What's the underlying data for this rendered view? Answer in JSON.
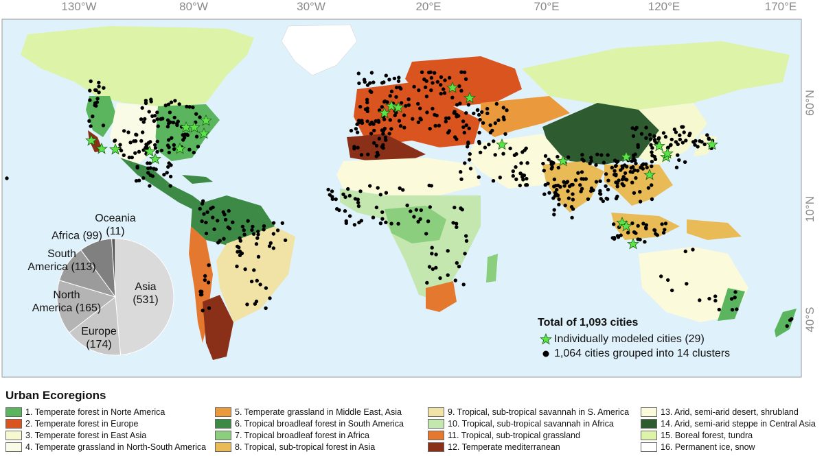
{
  "map": {
    "longitude_ticks": [
      "130°W",
      "80°W",
      "30°W",
      "20°E",
      "70°E",
      "120°E",
      "170°E"
    ],
    "latitude_ticks": [
      "60°N",
      "10°N",
      "40°S"
    ],
    "colors": {
      "ocean": "#dff1fb",
      "star": "#5de34a",
      "dot": "#000000"
    }
  },
  "pie": {
    "slices": [
      {
        "region": "Asia",
        "count_label": "(531)",
        "value": 531,
        "color": "#dadada"
      },
      {
        "region": "Europe",
        "count_label": "(174)",
        "value": 174,
        "color": "#c8c8c8"
      },
      {
        "region": "North America",
        "label_line1": "North",
        "label_line2": "America (165)",
        "value": 165,
        "color": "#b4b4b4"
      },
      {
        "region": "South America",
        "label_line1": "South",
        "label_line2": "America (113)",
        "value": 113,
        "color": "#9b9b9b"
      },
      {
        "region": "Africa",
        "label": "Africa (99)",
        "value": 99,
        "color": "#808080"
      },
      {
        "region": "Oceania",
        "label_line1": "Oceania",
        "label_line2": "(11)",
        "value": 11,
        "color": "#5a5a5a"
      }
    ],
    "labels": {
      "asia_name": "Asia",
      "asia_count": "(531)",
      "europe_name": "Europe",
      "europe_count": "(174)",
      "north_line1": "North",
      "north_line2": "America (165)",
      "south_line1": "South",
      "south_line2": "America (113)",
      "africa": "Africa (99)",
      "oceania_line1": "Oceania",
      "oceania_line2": "(11)"
    }
  },
  "map_legend": {
    "total": "Total of 1,093 cities",
    "star_label": "Individually modeled cities (29)",
    "dot_label": "1,064 cities grouped into 14 clusters"
  },
  "ecoregions": {
    "title": "Urban Ecoregions",
    "items": [
      {
        "label": "1. Temperate forest in Norte America",
        "color": "#5ab55e"
      },
      {
        "label": "2. Temperate forest in Europe",
        "color": "#d9541e"
      },
      {
        "label": "3. Temperate forest in East Asia",
        "color": "#f6f8cf"
      },
      {
        "label": "4. Temperate grassland in North-South America",
        "color": "#fafbe6"
      },
      {
        "label": "5. Temperate grassland in Middle East, Asia",
        "color": "#ea9a3c"
      },
      {
        "label": "6. Tropical broadleaf forest in South America",
        "color": "#3d8a47"
      },
      {
        "label": "7. Tropical broadleaf forest in Africa",
        "color": "#8bcf7e"
      },
      {
        "label": "8. Tropical, sub-tropical forest in Asia",
        "color": "#e8bb57"
      },
      {
        "label": "9. Tropical, sub-tropical savannah in S. America",
        "color": "#f1e3a6"
      },
      {
        "label": "10. Tropical, sub-tropical savannah in Africa",
        "color": "#c4e7b0"
      },
      {
        "label": "11. Tropical, sub-tropical grassland",
        "color": "#e5782f"
      },
      {
        "label": "12. Temperate mediterranean",
        "color": "#8b3018"
      },
      {
        "label": "13. Arid, semi-arid desert, shrubland",
        "color": "#fbfbdc"
      },
      {
        "label": "14. Arid, semi-arid steppe in Central Asia",
        "color": "#2e5c30"
      },
      {
        "label": "15. Boreal forest, tundra",
        "color": "#dcf3a8"
      },
      {
        "label": "16. Permanent ice, snow",
        "color": "#ffffff"
      }
    ]
  }
}
